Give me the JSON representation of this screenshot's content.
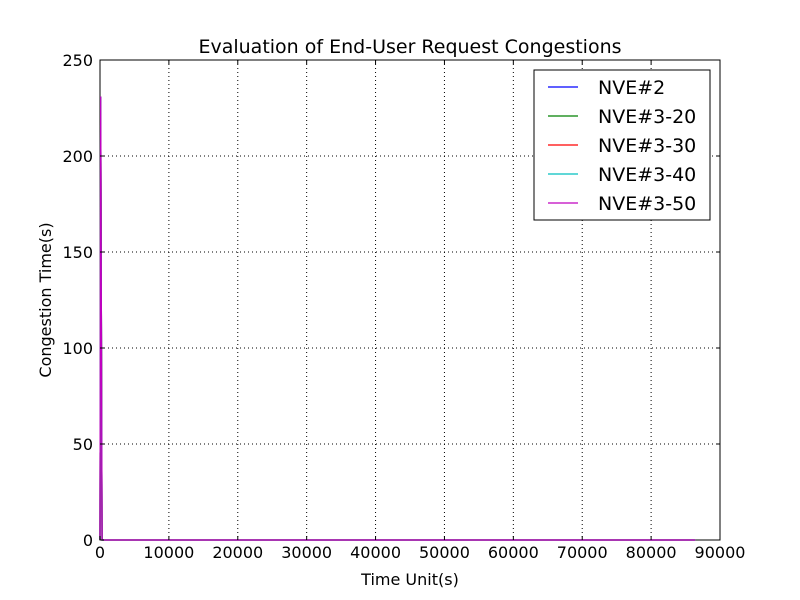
{
  "chart_data": {
    "type": "line",
    "title": "Evaluation of End-User Request Congestions",
    "xlabel": "Time Unit(s)",
    "ylabel": "Congestion Time(s)",
    "xlim": [
      0,
      90000
    ],
    "ylim": [
      0,
      250
    ],
    "xticks": [
      "0",
      "10000",
      "20000",
      "30000",
      "40000",
      "50000",
      "60000",
      "70000",
      "80000",
      "90000"
    ],
    "yticks": [
      "0",
      "50",
      "100",
      "150",
      "200",
      "250"
    ],
    "grid": true,
    "legend_position": "top-right",
    "series": [
      {
        "name": "NVE#2",
        "color": "#0000ff",
        "x": [
          0,
          100,
          300,
          86400
        ],
        "y": [
          0,
          231,
          0,
          0
        ]
      },
      {
        "name": "NVE#3-20",
        "color": "#008000",
        "x": [
          0,
          100,
          300,
          86400
        ],
        "y": [
          0,
          231,
          0,
          0
        ]
      },
      {
        "name": "NVE#3-30",
        "color": "#ff0000",
        "x": [
          0,
          100,
          300,
          86400
        ],
        "y": [
          0,
          231,
          0,
          0
        ]
      },
      {
        "name": "NVE#3-40",
        "color": "#00bfbf",
        "x": [
          0,
          100,
          300,
          86400
        ],
        "y": [
          0,
          231,
          0,
          0
        ]
      },
      {
        "name": "NVE#3-50",
        "color": "#bf00bf",
        "x": [
          0,
          100,
          300,
          86400
        ],
        "y": [
          0,
          231,
          0,
          0
        ]
      }
    ]
  }
}
